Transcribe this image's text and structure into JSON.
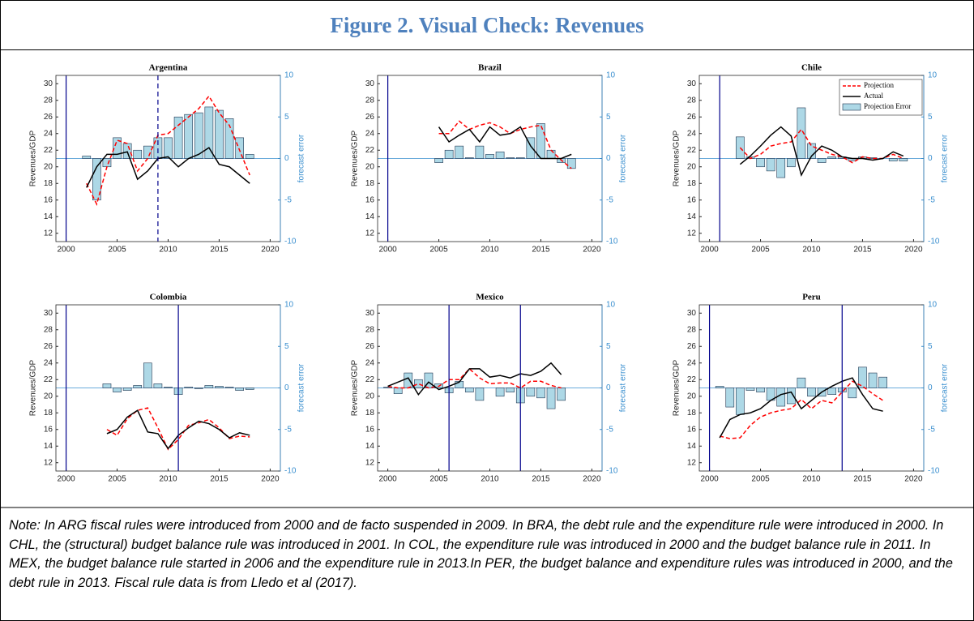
{
  "title": "Figure 2. Visual Check: Revenues",
  "chart_data": [
    {
      "type": "combo",
      "title": "Argentina",
      "x": [
        2002,
        2003,
        2004,
        2005,
        2006,
        2007,
        2008,
        2009,
        2010,
        2011,
        2012,
        2013,
        2014,
        2015,
        2016,
        2017,
        2018
      ],
      "xlim": [
        1999,
        2021
      ],
      "xticks": [
        2000,
        2005,
        2010,
        2015,
        2020
      ],
      "ylabel": "Revenues/GDP",
      "ylim": [
        11,
        31
      ],
      "yticks": [
        12,
        14,
        16,
        18,
        20,
        22,
        24,
        26,
        28,
        30
      ],
      "y2label": "forecast error",
      "y2lim": [
        -10,
        10
      ],
      "y2ticks": [
        -10,
        -5,
        0,
        5,
        10
      ],
      "rule_years": [
        2000
      ],
      "suspension_years": [
        2009
      ],
      "rule_color": "#00008b",
      "series": [
        {
          "type": "bar",
          "axis": "y2",
          "color": "#add8e6",
          "values": [
            0.3,
            -5,
            -1,
            2.5,
            1.8,
            1,
            1.5,
            2.5,
            2.5,
            5,
            5.3,
            5.5,
            6.2,
            5.8,
            4.8,
            2.5,
            0.5
          ]
        },
        {
          "type": "line",
          "dashed": true,
          "color": "#ff0000",
          "values": [
            18,
            15.5,
            20,
            23.2,
            22.8,
            19.5,
            21,
            23.8,
            24,
            25,
            26,
            27,
            28.5,
            26.5,
            25,
            22,
            19
          ]
        },
        {
          "type": "line",
          "color": "#000000",
          "values": [
            17.5,
            20,
            21.5,
            21.5,
            21.8,
            18.5,
            19.5,
            21,
            21.2,
            20,
            21,
            21.5,
            22.3,
            20.3,
            20,
            19,
            18
          ]
        }
      ],
      "legend": false
    },
    {
      "type": "combo",
      "title": "Brazil",
      "x": [
        2005,
        2006,
        2007,
        2008,
        2009,
        2010,
        2011,
        2012,
        2013,
        2014,
        2015,
        2016,
        2017,
        2018
      ],
      "xlim": [
        1999,
        2021
      ],
      "xticks": [
        2000,
        2005,
        2010,
        2015,
        2020
      ],
      "ylabel": "Revenues/GDP",
      "ylim": [
        11,
        31
      ],
      "yticks": [
        12,
        14,
        16,
        18,
        20,
        22,
        24,
        26,
        28,
        30
      ],
      "y2label": "forecast error",
      "y2lim": [
        -10,
        10
      ],
      "y2ticks": [
        -10,
        -5,
        0,
        5,
        10
      ],
      "rule_years": [
        2000
      ],
      "suspension_years": [],
      "rule_color": "#00008b",
      "series": [
        {
          "type": "bar",
          "axis": "y2",
          "color": "#add8e6",
          "values": [
            -0.5,
            1,
            1.5,
            0.1,
            1.5,
            0.5,
            0.8,
            0.1,
            0.1,
            2.5,
            4.2,
            1,
            -0.5,
            -1.2
          ]
        },
        {
          "type": "line",
          "dashed": true,
          "color": "#ff0000",
          "values": [
            24,
            24,
            25.5,
            24.5,
            25,
            25.3,
            24.8,
            24,
            24.5,
            24.8,
            25,
            22,
            20.8,
            19.8
          ]
        },
        {
          "type": "line",
          "color": "#000000",
          "values": [
            24.8,
            23,
            23.8,
            24.5,
            23,
            24.8,
            23.8,
            24,
            24.8,
            22.5,
            21,
            21,
            21,
            21.5
          ]
        }
      ],
      "legend": false
    },
    {
      "type": "combo",
      "title": "Chile",
      "x": [
        2003,
        2004,
        2005,
        2006,
        2007,
        2008,
        2009,
        2010,
        2011,
        2012,
        2013,
        2014,
        2015,
        2016,
        2017,
        2018,
        2019
      ],
      "xlim": [
        1999,
        2021
      ],
      "xticks": [
        2000,
        2005,
        2010,
        2015,
        2020
      ],
      "ylabel": "Revenues/GDP",
      "ylim": [
        11,
        31
      ],
      "yticks": [
        12,
        14,
        16,
        18,
        20,
        22,
        24,
        26,
        28,
        30
      ],
      "y2label": "forecast error",
      "y2lim": [
        -10,
        10
      ],
      "y2ticks": [
        -10,
        -5,
        0,
        5,
        10
      ],
      "rule_years": [
        2001
      ],
      "suspension_years": [],
      "rule_color": "#00008b",
      "series": [
        {
          "name": "Projection Error",
          "type": "bar",
          "axis": "y2",
          "color": "#add8e6",
          "values": [
            2.6,
            0.2,
            -1,
            -1.5,
            -2.3,
            -1,
            6.1,
            1.8,
            -0.5,
            0.2,
            0.2,
            -0.3,
            0.2,
            0.1,
            0,
            -0.3,
            -0.3
          ]
        },
        {
          "name": "Projection",
          "type": "line",
          "dashed": true,
          "color": "#ff0000",
          "values": [
            22.3,
            21,
            21.5,
            22.5,
            22.8,
            23,
            24.5,
            22.5,
            22,
            21.5,
            21.2,
            20.5,
            21.2,
            21,
            21,
            21.5,
            21
          ]
        },
        {
          "name": "Actual",
          "type": "line",
          "color": "#000000",
          "values": [
            20.3,
            21.3,
            22.5,
            23.8,
            24.8,
            23.7,
            19,
            21.3,
            22.5,
            22,
            21.2,
            21,
            21,
            20.8,
            21,
            21.8,
            21.3
          ]
        }
      ],
      "legend": true,
      "legend_order": [
        1,
        2,
        0
      ]
    },
    {
      "type": "combo",
      "title": "Colombia",
      "x": [
        2004,
        2005,
        2006,
        2007,
        2008,
        2009,
        2010,
        2011,
        2012,
        2013,
        2014,
        2015,
        2016,
        2017,
        2018
      ],
      "xlim": [
        1999,
        2021
      ],
      "xticks": [
        2000,
        2005,
        2010,
        2015,
        2020
      ],
      "ylabel": "Revenues/GDP",
      "ylim": [
        11,
        31
      ],
      "yticks": [
        12,
        14,
        16,
        18,
        20,
        22,
        24,
        26,
        28,
        30
      ],
      "y2label": "forecast error",
      "y2lim": [
        -10,
        10
      ],
      "y2ticks": [
        -10,
        -5,
        0,
        5,
        10
      ],
      "rule_years": [
        2000,
        2011
      ],
      "suspension_years": [],
      "rule_color": "#00008b",
      "series": [
        {
          "type": "bar",
          "axis": "y2",
          "color": "#add8e6",
          "values": [
            0.5,
            -0.5,
            -0.3,
            0.3,
            3,
            0.5,
            0.1,
            -0.8,
            0.1,
            -0.1,
            0.3,
            0.2,
            0.1,
            -0.3,
            -0.2
          ]
        },
        {
          "type": "line",
          "dashed": true,
          "color": "#ff0000",
          "values": [
            16,
            15.3,
            17.3,
            18.3,
            18.6,
            16.2,
            13.6,
            14.8,
            16.5,
            16.8,
            17.2,
            16.2,
            14.9,
            15.2,
            15.1
          ]
        },
        {
          "type": "line",
          "color": "#000000",
          "values": [
            15.5,
            16,
            17.5,
            18.3,
            15.7,
            15.5,
            13.7,
            15.3,
            16.2,
            17,
            16.7,
            16,
            15,
            15.6,
            15.3
          ]
        }
      ],
      "legend": false
    },
    {
      "type": "combo",
      "title": "Mexico",
      "x": [
        2000,
        2001,
        2002,
        2003,
        2004,
        2005,
        2006,
        2007,
        2008,
        2009,
        2010,
        2011,
        2012,
        2013,
        2014,
        2015,
        2016,
        2017
      ],
      "xlim": [
        1999,
        2021
      ],
      "xticks": [
        2000,
        2005,
        2010,
        2015,
        2020
      ],
      "ylabel": "Revenues/GDP",
      "ylim": [
        11,
        31
      ],
      "yticks": [
        12,
        14,
        16,
        18,
        20,
        22,
        24,
        26,
        28,
        30
      ],
      "y2label": "forecast error",
      "y2lim": [
        -10,
        10
      ],
      "y2ticks": [
        -10,
        -5,
        0,
        5,
        10
      ],
      "rule_years": [
        2006,
        2013
      ],
      "suspension_years": [],
      "rule_color": "#00008b",
      "series": [
        {
          "type": "bar",
          "axis": "y2",
          "color": "#add8e6",
          "values": [
            0.1,
            -0.7,
            1.8,
            1,
            1.8,
            0.5,
            -0.6,
            0.8,
            -0.5,
            -1.5,
            0,
            -1,
            -0.5,
            -1.8,
            -1,
            -1.2,
            -2.5,
            -1.5
          ]
        },
        {
          "type": "line",
          "dashed": true,
          "color": "#ff0000",
          "values": [
            21.2,
            21,
            21,
            21.5,
            21,
            21.2,
            22,
            22,
            23.3,
            22.2,
            21.5,
            21.6,
            21.6,
            21,
            21.8,
            21.8,
            21.3,
            21
          ]
        },
        {
          "type": "line",
          "color": "#000000",
          "values": [
            21.2,
            21.7,
            22.2,
            20.2,
            21.7,
            20.8,
            21.2,
            21.7,
            23.3,
            23.3,
            22.3,
            22.5,
            22.2,
            22.7,
            22.5,
            23,
            24,
            22.6
          ]
        }
      ],
      "legend": false
    },
    {
      "type": "combo",
      "title": "Peru",
      "x": [
        2001,
        2002,
        2003,
        2004,
        2005,
        2006,
        2007,
        2008,
        2009,
        2010,
        2011,
        2012,
        2013,
        2014,
        2015,
        2016,
        2017
      ],
      "xlim": [
        1999,
        2021
      ],
      "xticks": [
        2000,
        2005,
        2010,
        2015,
        2020
      ],
      "ylabel": "Revenues/GDP",
      "ylim": [
        11,
        31
      ],
      "yticks": [
        12,
        14,
        16,
        18,
        20,
        22,
        24,
        26,
        28,
        30
      ],
      "y2label": "forecast error",
      "y2lim": [
        -10,
        10
      ],
      "y2ticks": [
        -10,
        -5,
        0,
        5,
        10
      ],
      "rule_years": [
        2000,
        2013
      ],
      "suspension_years": [],
      "rule_color": "#00008b",
      "series": [
        {
          "type": "bar",
          "axis": "y2",
          "color": "#add8e6",
          "values": [
            0.2,
            -2.3,
            -3.2,
            -0.3,
            -0.5,
            -1.5,
            -2.2,
            -1.9,
            1.2,
            -1,
            -1,
            -0.8,
            -0.5,
            -1.2,
            2.5,
            1.8,
            1.3
          ]
        },
        {
          "type": "line",
          "dashed": true,
          "color": "#ff0000",
          "values": [
            15.2,
            14.9,
            15,
            16.5,
            17.5,
            18,
            18.3,
            18.5,
            19.6,
            18.5,
            19.5,
            19.2,
            20.5,
            21.8,
            21.2,
            20.3,
            19.5
          ]
        },
        {
          "type": "line",
          "color": "#000000",
          "values": [
            15,
            17.2,
            17.8,
            18,
            18.5,
            19.5,
            20.2,
            20.5,
            18.5,
            19.5,
            20.5,
            21.2,
            21.8,
            22.2,
            20.2,
            18.5,
            18.2
          ]
        }
      ],
      "legend": false
    }
  ],
  "note": "Note: In ARG fiscal rules were introduced from 2000 and de facto suspended in 2009. In BRA, the debt rule and the expenditure rule were introduced in 2000. In CHL, the (structural) budget balance rule was introduced in 2001. In COL, the expenditure rule was introduced in 2000 and the budget balance rule in 2011. In MEX, the budget balance rule started in 2006 and the expenditure rule in 2013.In PER, the budget balance and expenditure rules was introduced in 2000, and the debt rule in 2013. Fiscal rule data is from Lledo et al (2017)."
}
